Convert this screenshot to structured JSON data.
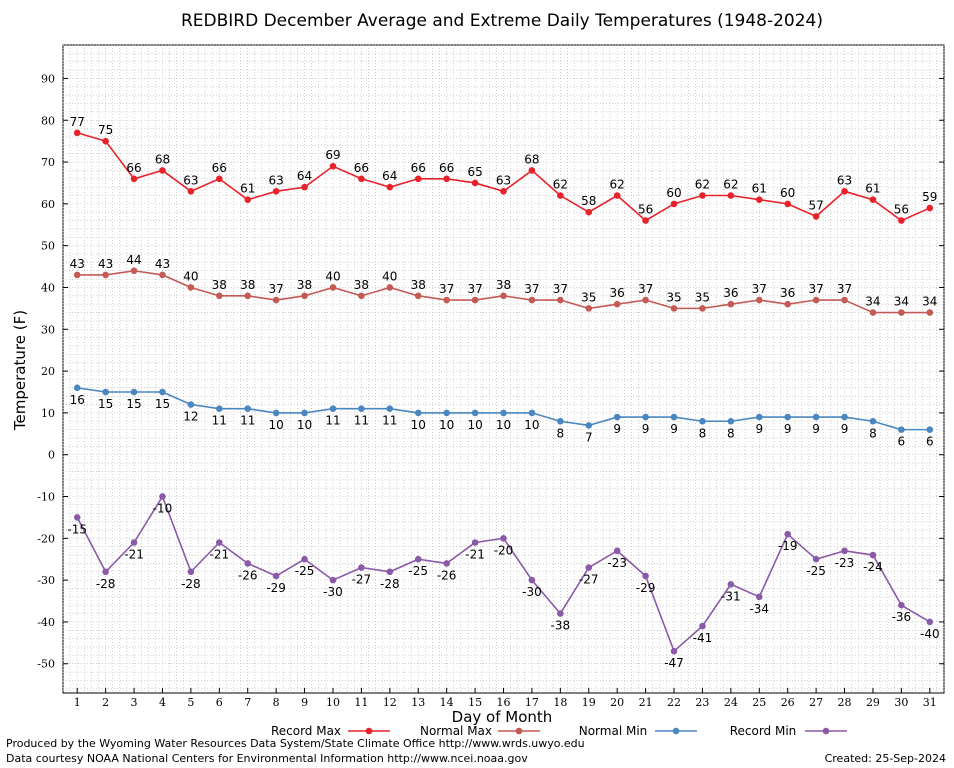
{
  "chart_data": {
    "type": "line",
    "title": "REDBIRD December Average and Extreme Daily Temperatures (1948-2024)",
    "xlabel": "Day of Month",
    "ylabel": "Temperature (F)",
    "ylim": [
      -57,
      98
    ],
    "y_ticks": [
      90,
      80,
      70,
      60,
      50,
      40,
      30,
      20,
      10,
      0,
      -10,
      -20,
      -30,
      -40,
      -50
    ],
    "x": [
      1,
      2,
      3,
      4,
      5,
      6,
      7,
      8,
      9,
      10,
      11,
      12,
      13,
      14,
      15,
      16,
      17,
      18,
      19,
      20,
      21,
      22,
      23,
      24,
      25,
      26,
      27,
      28,
      29,
      30,
      31
    ],
    "grid": true,
    "legend_placement": "bottom",
    "series": [
      {
        "name": "Record Max",
        "color": "#e8222a",
        "values": [
          77,
          75,
          66,
          68,
          63,
          66,
          61,
          63,
          64,
          69,
          66,
          64,
          66,
          66,
          65,
          63,
          68,
          62,
          58,
          62,
          56,
          60,
          62,
          62,
          61,
          60,
          57,
          63,
          61,
          56,
          59
        ]
      },
      {
        "name": "Normal Max",
        "color": "#c45a55",
        "values": [
          43,
          43,
          44,
          43,
          40,
          38,
          38,
          37,
          38,
          40,
          38,
          40,
          38,
          37,
          37,
          38,
          37,
          37,
          35,
          36,
          37,
          35,
          35,
          36,
          37,
          36,
          37,
          37,
          34,
          34,
          34
        ]
      },
      {
        "name": "Normal Min",
        "color": "#4a86c0",
        "values": [
          16,
          15,
          15,
          15,
          12,
          11,
          11,
          10,
          10,
          11,
          11,
          11,
          10,
          10,
          10,
          10,
          10,
          8,
          7,
          9,
          9,
          9,
          8,
          8,
          9,
          9,
          9,
          9,
          8,
          6,
          6
        ]
      },
      {
        "name": "Record Min",
        "color": "#8a5aa8",
        "values": [
          -15,
          -28,
          -21,
          -10,
          -28,
          -21,
          -26,
          -29,
          -25,
          -30,
          -27,
          -28,
          -25,
          -26,
          -21,
          -20,
          -30,
          -38,
          -27,
          -23,
          -29,
          -47,
          -41,
          -31,
          -34,
          -19,
          -25,
          -23,
          -24,
          -36,
          -40
        ]
      }
    ]
  },
  "footer": {
    "produced_by": "Produced by the Wyoming Water Resources Data System/State Climate Office http://www.wrds.uwyo.edu",
    "data_courtesy": "Data courtesy NOAA National Centers for Environmental Information http://www.ncei.noaa.gov",
    "created": "Created: 25-Sep-2024"
  }
}
